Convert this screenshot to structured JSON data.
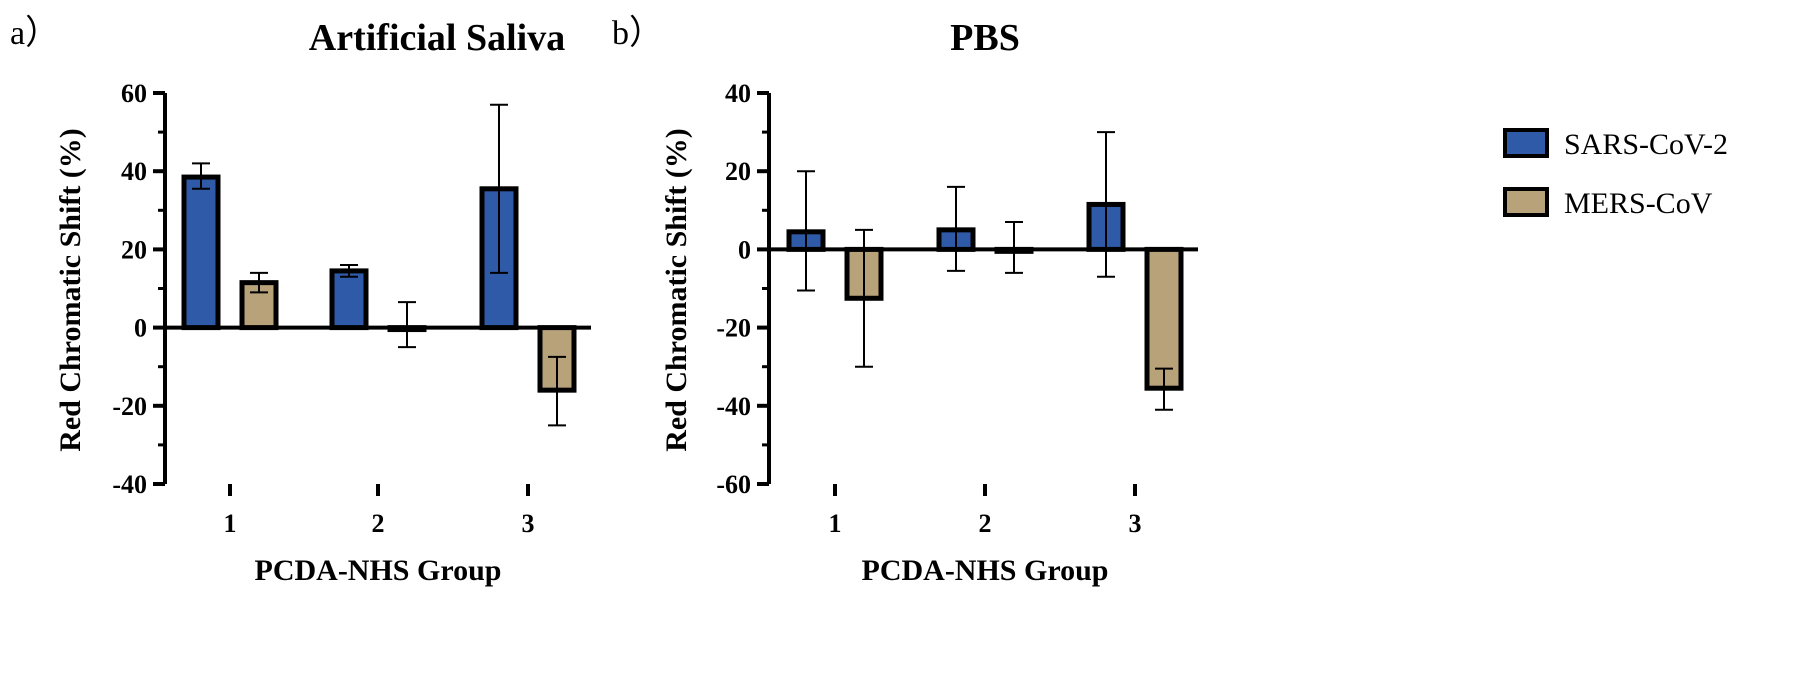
{
  "panels": [
    {
      "letter": "a）"
    },
    {
      "letter": "b）"
    }
  ],
  "legend": [
    "SARS-CoV-2",
    "MERS-CoV"
  ],
  "colors": {
    "SARS-CoV-2": "#2f5aa8",
    "MERS-CoV": "#b8a27a",
    "edge": "#000000"
  },
  "chart_data": [
    {
      "type": "bar",
      "title": "Artificial Saliva",
      "xlabel": "PCDA-NHS Group",
      "ylabel": "Red Chromatic Shift (%)",
      "categories": [
        "1",
        "2",
        "3"
      ],
      "ylim": [
        -40,
        60
      ],
      "yticks": [
        -40,
        -20,
        0,
        20,
        40,
        60
      ],
      "grid": false,
      "legend_position": "right",
      "series": [
        {
          "name": "SARS-CoV-2",
          "values": [
            38.5,
            14.5,
            35.5
          ],
          "err_low": [
            35.5,
            13.0,
            14.0
          ],
          "err_high": [
            42.0,
            16.0,
            57.0
          ]
        },
        {
          "name": "MERS-CoV",
          "values": [
            11.5,
            -0.5,
            -16.0
          ],
          "err_low": [
            9.0,
            -5.0,
            -25.0
          ],
          "err_high": [
            14.0,
            6.5,
            -7.5
          ]
        }
      ]
    },
    {
      "type": "bar",
      "title": "PBS",
      "xlabel": "PCDA-NHS Group",
      "ylabel": "Red Chromatic Shift (%)",
      "categories": [
        "1",
        "2",
        "3"
      ],
      "ylim": [
        -60,
        40
      ],
      "yticks": [
        -60,
        -40,
        -20,
        0,
        20,
        40
      ],
      "grid": false,
      "legend_position": "right",
      "series": [
        {
          "name": "SARS-CoV-2",
          "values": [
            4.5,
            5.0,
            11.5
          ],
          "err_low": [
            -10.5,
            -5.5,
            -7.0
          ],
          "err_high": [
            20.0,
            16.0,
            30.0
          ]
        },
        {
          "name": "MERS-CoV",
          "values": [
            -12.5,
            -0.5,
            -35.5
          ],
          "err_low": [
            -30.0,
            -6.0,
            -41.0
          ],
          "err_high": [
            5.0,
            7.0,
            -30.5
          ]
        }
      ]
    }
  ]
}
